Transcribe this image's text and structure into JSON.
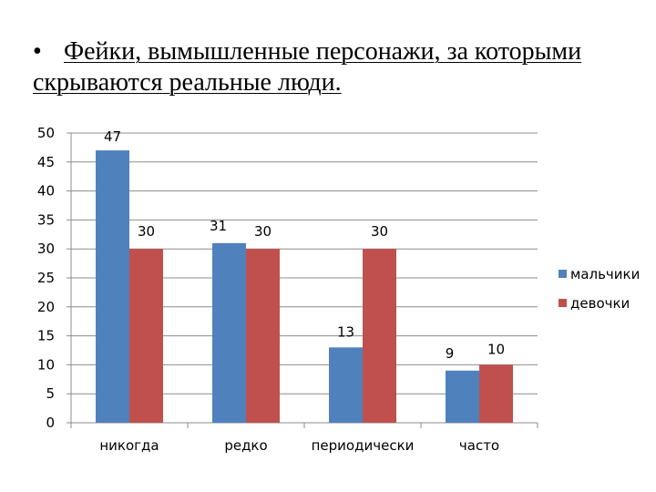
{
  "slide": {
    "bullet": "•",
    "title": "Фейки, вымышленные персонажи, за которыми скрываются реальные люди."
  },
  "chart_data": {
    "type": "bar",
    "categories": [
      "никогда",
      "редко",
      "периодически",
      "часто"
    ],
    "series": [
      {
        "name": "мальчики",
        "color": "#4F81BD",
        "values": [
          47,
          31,
          13,
          9
        ]
      },
      {
        "name": "девочки",
        "color": "#C0504D",
        "values": [
          30,
          30,
          30,
          10
        ]
      }
    ],
    "ylim": [
      0,
      50
    ],
    "yticks": [
      0,
      5,
      10,
      15,
      20,
      25,
      30,
      35,
      40,
      45,
      50
    ],
    "grid": true,
    "legend": "right",
    "xlabel": "",
    "ylabel": ""
  }
}
